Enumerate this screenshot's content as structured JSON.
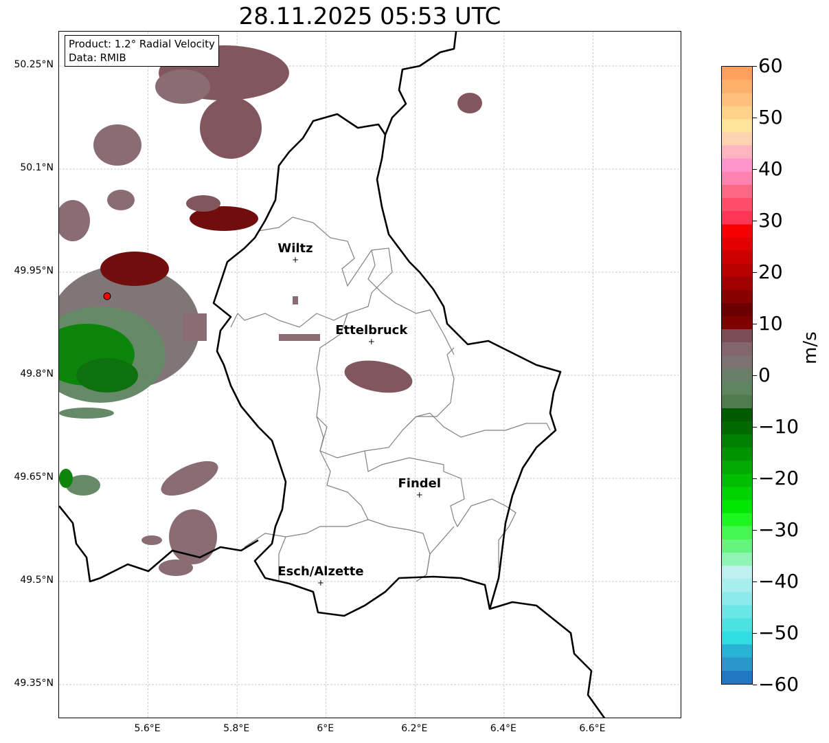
{
  "title": "28.11.2025 05:53 UTC",
  "info": {
    "product": "Product: 1.2° Radial Velocity",
    "data": "Data: RMIB"
  },
  "map": {
    "lon_range": [
      5.4,
      6.8
    ],
    "lat_range": [
      49.3,
      50.3
    ],
    "lon_ticks": [
      {
        "v": 5.6,
        "label": "5.6°E"
      },
      {
        "v": 5.8,
        "label": "5.8°E"
      },
      {
        "v": 6.0,
        "label": "6°E"
      },
      {
        "v": 6.2,
        "label": "6.2°E"
      },
      {
        "v": 6.4,
        "label": "6.4°E"
      },
      {
        "v": 6.6,
        "label": "6.6°E"
      }
    ],
    "lat_ticks": [
      {
        "v": 50.25,
        "label": "50.25°N"
      },
      {
        "v": 50.1,
        "label": "50.1°N"
      },
      {
        "v": 49.95,
        "label": "49.95°N"
      },
      {
        "v": 49.8,
        "label": "49.8°N"
      },
      {
        "v": 49.65,
        "label": "49.65°N"
      },
      {
        "v": 49.5,
        "label": "49.5°N"
      },
      {
        "v": 49.35,
        "label": "49.35°N"
      }
    ],
    "cities": [
      {
        "name": "Wiltz",
        "lon": 5.931,
        "lat": 49.968
      },
      {
        "name": "Ettelbruck",
        "lon": 6.102,
        "lat": 49.849
      },
      {
        "name": "Findel",
        "lon": 6.21,
        "lat": 49.626
      },
      {
        "name": "Esch/Alzette",
        "lon": 5.988,
        "lat": 49.498
      }
    ],
    "radar_site": {
      "lon": 5.508,
      "lat": 49.915,
      "color": "#ff0000"
    }
  },
  "colorbar": {
    "label": "m/s",
    "range": [
      -60,
      60
    ],
    "ticks": [
      {
        "v": 60,
        "label": "60"
      },
      {
        "v": 50,
        "label": "50"
      },
      {
        "v": 40,
        "label": "40"
      },
      {
        "v": 30,
        "label": "30"
      },
      {
        "v": 20,
        "label": "20"
      },
      {
        "v": 10,
        "label": "10"
      },
      {
        "v": 0,
        "label": "0"
      },
      {
        "v": -10,
        "label": "−10"
      },
      {
        "v": -20,
        "label": "−20"
      },
      {
        "v": -30,
        "label": "−30"
      },
      {
        "v": -40,
        "label": "−40"
      },
      {
        "v": -50,
        "label": "−50"
      },
      {
        "v": -60,
        "label": "−60"
      }
    ],
    "colors": [
      "#1f78c1",
      "#2a97cc",
      "#27b4d4",
      "#30dde0",
      "#4be2e2",
      "#6ae6e6",
      "#8ceaea",
      "#a8eeee",
      "#bff0f0",
      "#8ef5b5",
      "#66f37e",
      "#45f552",
      "#1ef71e",
      "#00e600",
      "#00d200",
      "#00bd00",
      "#00a800",
      "#009300",
      "#007f00",
      "#006a00",
      "#005a00",
      "#4f7b4e",
      "#5e8460",
      "#6a7f6a",
      "#7c7272",
      "#84656d",
      "#7b4e55",
      "#800000",
      "#6b0000",
      "#8a0000",
      "#a00000",
      "#b80000",
      "#cd0000",
      "#e20000",
      "#f70000",
      "#ff3555",
      "#ff4d6b",
      "#ff6885",
      "#ff82b0",
      "#ff95cc",
      "#ffb4c0",
      "#ffd3b0",
      "#ffe59a",
      "#ffd28a",
      "#ffc07a",
      "#ffb06a",
      "#ffa060"
    ]
  }
}
